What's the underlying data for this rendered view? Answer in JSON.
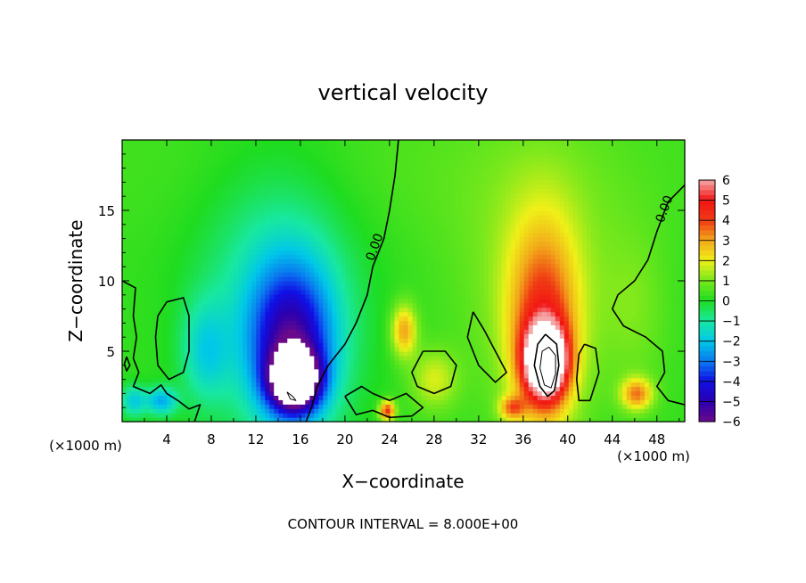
{
  "chart_data": {
    "type": "heatmap",
    "title": "vertical velocity",
    "xlabel": "X−coordinate",
    "ylabel": "Z−coordinate",
    "x_units_left": "(×1000 m)",
    "x_units_right": "(×1000 m)",
    "xlim": [
      0,
      50.5
    ],
    "ylim": [
      0,
      20
    ],
    "x_ticks": [
      4,
      8,
      12,
      16,
      20,
      24,
      28,
      32,
      36,
      40,
      44,
      48
    ],
    "y_ticks": [
      5,
      10,
      15
    ],
    "colorbar": {
      "ticks": [
        6,
        5,
        4,
        3,
        2,
        1,
        0,
        -1,
        -2,
        -3,
        -4,
        -5,
        -6
      ],
      "tick_labels": [
        "6",
        "5",
        "4",
        "3",
        "2",
        "1",
        "0",
        "−1",
        "−2",
        "−3",
        "−4",
        "−5",
        "−6"
      ],
      "colors": [
        {
          "v": -6.0,
          "c": "#6a0a8a"
        },
        {
          "v": -5.0,
          "c": "#2a00b0"
        },
        {
          "v": -4.0,
          "c": "#1010e6"
        },
        {
          "v": -3.0,
          "c": "#0a7af0"
        },
        {
          "v": -2.0,
          "c": "#00c8e8"
        },
        {
          "v": -1.0,
          "c": "#18e8a0"
        },
        {
          "v": 0.0,
          "c": "#1fdc1f"
        },
        {
          "v": 1.0,
          "c": "#78e81c"
        },
        {
          "v": 2.0,
          "c": "#f0f018"
        },
        {
          "v": 3.0,
          "c": "#f2a81a"
        },
        {
          "v": 4.0,
          "c": "#f03a14"
        },
        {
          "v": 5.0,
          "c": "#f21414"
        },
        {
          "v": 6.0,
          "c": "#f4a8a8"
        }
      ],
      "over_color": "#ffffff"
    },
    "field_components": [
      {
        "name": "downdraft-core",
        "x": 15.5,
        "z": 3.0,
        "amp": -8.0,
        "sx": 1.5,
        "sz": 1.4
      },
      {
        "name": "downdraft-column",
        "x": 15.2,
        "z": 5.5,
        "amp": -4.5,
        "sx": 2.6,
        "sz": 3.8
      },
      {
        "name": "downdraft-halo",
        "x": 14.0,
        "z": 9.0,
        "amp": -1.6,
        "sx": 5.0,
        "sz": 7.0
      },
      {
        "name": "cyan-left",
        "x": 7.5,
        "z": 5.0,
        "amp": -1.6,
        "sx": 1.5,
        "sz": 2.5
      },
      {
        "name": "updraft-core",
        "x": 38.0,
        "z": 4.3,
        "amp": 8.0,
        "sx": 1.3,
        "sz": 1.8
      },
      {
        "name": "updraft-column",
        "x": 37.8,
        "z": 6.5,
        "amp": 3.5,
        "sx": 2.2,
        "sz": 5.0
      },
      {
        "name": "updraft-halo",
        "x": 37.5,
        "z": 11.0,
        "amp": 1.0,
        "sx": 5.0,
        "sz": 6.5
      },
      {
        "name": "orange-24",
        "x": 25.3,
        "z": 6.5,
        "amp": 2.8,
        "sx": 0.8,
        "sz": 1.3
      },
      {
        "name": "orange-46",
        "x": 46.2,
        "z": 2.0,
        "amp": 3.0,
        "sx": 1.0,
        "sz": 0.8
      },
      {
        "name": "yellow-28",
        "x": 28.0,
        "z": 3.0,
        "amp": 1.5,
        "sx": 1.5,
        "sz": 1.5
      },
      {
        "name": "red-24",
        "x": 23.8,
        "z": 0.8,
        "amp": 4.0,
        "sx": 0.5,
        "sz": 0.5
      },
      {
        "name": "orange-35",
        "x": 35.0,
        "z": 1.0,
        "amp": 2.5,
        "sx": 0.8,
        "sz": 0.6
      },
      {
        "name": "blue-left-1",
        "x": 3.5,
        "z": 1.5,
        "amp": -2.5,
        "sx": 1.0,
        "sz": 0.7
      },
      {
        "name": "blue-left-2",
        "x": 1.0,
        "z": 1.5,
        "amp": -2.0,
        "sx": 0.8,
        "sz": 0.8
      },
      {
        "name": "green-top",
        "x": 25.0,
        "z": 18.0,
        "amp": 0.3,
        "sx": 20.0,
        "sz": 4.0
      },
      {
        "name": "green-right",
        "x": 46.0,
        "z": 8.0,
        "amp": 0.6,
        "sx": 2.0,
        "sz": 4.0
      }
    ],
    "contours": [
      {
        "level": 0.0,
        "label": "0.00",
        "label_at": [
          23.0,
          12.3
        ],
        "points": [
          [
            24.8,
            20.0
          ],
          [
            24.5,
            17.5
          ],
          [
            24.0,
            15.0
          ],
          [
            23.5,
            13.0
          ],
          [
            22.5,
            11.0
          ],
          [
            22.0,
            9.0
          ],
          [
            21.0,
            7.0
          ],
          [
            20.0,
            5.5
          ],
          [
            18.5,
            4.0
          ],
          [
            17.5,
            2.5
          ],
          [
            17.0,
            1.0
          ],
          [
            16.5,
            0.0
          ]
        ]
      },
      {
        "level": 0.0,
        "label": "0.00",
        "label_at": [
          49.0,
          15.0
        ],
        "points": [
          [
            50.5,
            16.8
          ],
          [
            49.0,
            15.6
          ],
          [
            48.0,
            13.5
          ],
          [
            47.2,
            11.5
          ],
          [
            46.0,
            10.0
          ],
          [
            44.5,
            9.0
          ],
          [
            44.0,
            8.0
          ],
          [
            45.0,
            6.8
          ],
          [
            47.0,
            6.0
          ],
          [
            48.5,
            5.0
          ],
          [
            48.7,
            3.5
          ],
          [
            48.0,
            2.5
          ],
          [
            49.0,
            1.5
          ],
          [
            50.5,
            1.2
          ]
        ]
      },
      {
        "level": 0.0,
        "label": "",
        "label_at": null,
        "points": [
          [
            38.0,
            6.2
          ],
          [
            39.0,
            5.5
          ],
          [
            39.2,
            4.0
          ],
          [
            38.8,
            2.2
          ],
          [
            38.2,
            1.8
          ],
          [
            37.5,
            2.5
          ],
          [
            37.0,
            4.0
          ],
          [
            37.3,
            5.5
          ],
          [
            38.0,
            6.2
          ]
        ]
      },
      {
        "level": 0.0,
        "label": "",
        "label_at": null,
        "points": [
          [
            4.0,
            8.5
          ],
          [
            5.5,
            8.8
          ],
          [
            6.0,
            7.5
          ],
          [
            6.0,
            5.0
          ],
          [
            5.5,
            3.5
          ],
          [
            4.2,
            3.0
          ],
          [
            3.2,
            4.0
          ],
          [
            3.0,
            6.0
          ],
          [
            3.2,
            7.5
          ],
          [
            4.0,
            8.5
          ]
        ]
      },
      {
        "level": 0.0,
        "label": "",
        "label_at": null,
        "points": [
          [
            0.0,
            10.0
          ],
          [
            1.2,
            9.5
          ],
          [
            1.0,
            7.5
          ],
          [
            1.3,
            6.0
          ],
          [
            1.0,
            4.5
          ],
          [
            1.5,
            3.5
          ],
          [
            1.0,
            2.5
          ],
          [
            2.5,
            2.0
          ],
          [
            3.5,
            2.6
          ],
          [
            4.0,
            2.0
          ],
          [
            5.0,
            1.5
          ],
          [
            6.0,
            0.9
          ],
          [
            7.0,
            1.2
          ],
          [
            6.5,
            0.0
          ]
        ]
      },
      {
        "level": 0.0,
        "label": "",
        "label_at": null,
        "points": [
          [
            0.4,
            4.6
          ],
          [
            0.7,
            4.0
          ],
          [
            0.4,
            3.6
          ],
          [
            0.2,
            4.1
          ],
          [
            0.4,
            4.6
          ]
        ]
      },
      {
        "level": 0.0,
        "label": "",
        "label_at": null,
        "points": [
          [
            31.5,
            7.8
          ],
          [
            32.5,
            6.5
          ],
          [
            33.5,
            5.0
          ],
          [
            34.5,
            3.5
          ],
          [
            33.5,
            2.8
          ],
          [
            32.0,
            4.0
          ],
          [
            31.0,
            6.0
          ],
          [
            31.5,
            7.8
          ]
        ]
      },
      {
        "level": 0.0,
        "label": "",
        "label_at": null,
        "points": [
          [
            41.5,
            5.5
          ],
          [
            42.5,
            5.2
          ],
          [
            42.8,
            3.5
          ],
          [
            42.0,
            1.5
          ],
          [
            41.0,
            1.5
          ],
          [
            40.8,
            3.0
          ],
          [
            41.0,
            4.8
          ],
          [
            41.5,
            5.5
          ]
        ]
      },
      {
        "level": 0.0,
        "label": "",
        "label_at": null,
        "points": [
          [
            27.0,
            5.0
          ],
          [
            29.0,
            5.0
          ],
          [
            30.0,
            4.0
          ],
          [
            29.5,
            2.5
          ],
          [
            28.0,
            2.0
          ],
          [
            26.5,
            2.5
          ],
          [
            26.0,
            3.5
          ],
          [
            27.0,
            5.0
          ]
        ]
      },
      {
        "level": 0.0,
        "label": "",
        "label_at": null,
        "points": [
          [
            20.0,
            1.8
          ],
          [
            21.5,
            2.5
          ],
          [
            22.5,
            2.0
          ],
          [
            24.0,
            1.5
          ],
          [
            25.5,
            2.0
          ],
          [
            27.0,
            1.0
          ],
          [
            26.0,
            0.4
          ],
          [
            24.0,
            0.3
          ],
          [
            22.5,
            0.8
          ],
          [
            21.0,
            0.5
          ],
          [
            20.0,
            1.8
          ]
        ]
      },
      {
        "level": 8.0,
        "label": "",
        "label_at": null,
        "points": [
          [
            38.3,
            5.3
          ],
          [
            38.9,
            4.7
          ],
          [
            38.9,
            3.4
          ],
          [
            38.5,
            2.4
          ],
          [
            37.9,
            2.6
          ],
          [
            37.5,
            3.8
          ],
          [
            37.7,
            5.0
          ],
          [
            38.3,
            5.3
          ]
        ]
      },
      {
        "level": -8.0,
        "label": "",
        "label_at": null,
        "points": [
          [
            14.8,
            2.1
          ],
          [
            15.3,
            1.8
          ],
          [
            15.6,
            1.5
          ],
          [
            15.1,
            1.6
          ],
          [
            14.8,
            2.1
          ]
        ]
      }
    ],
    "footer": "CONTOUR INTERVAL = 8.000E+00"
  }
}
